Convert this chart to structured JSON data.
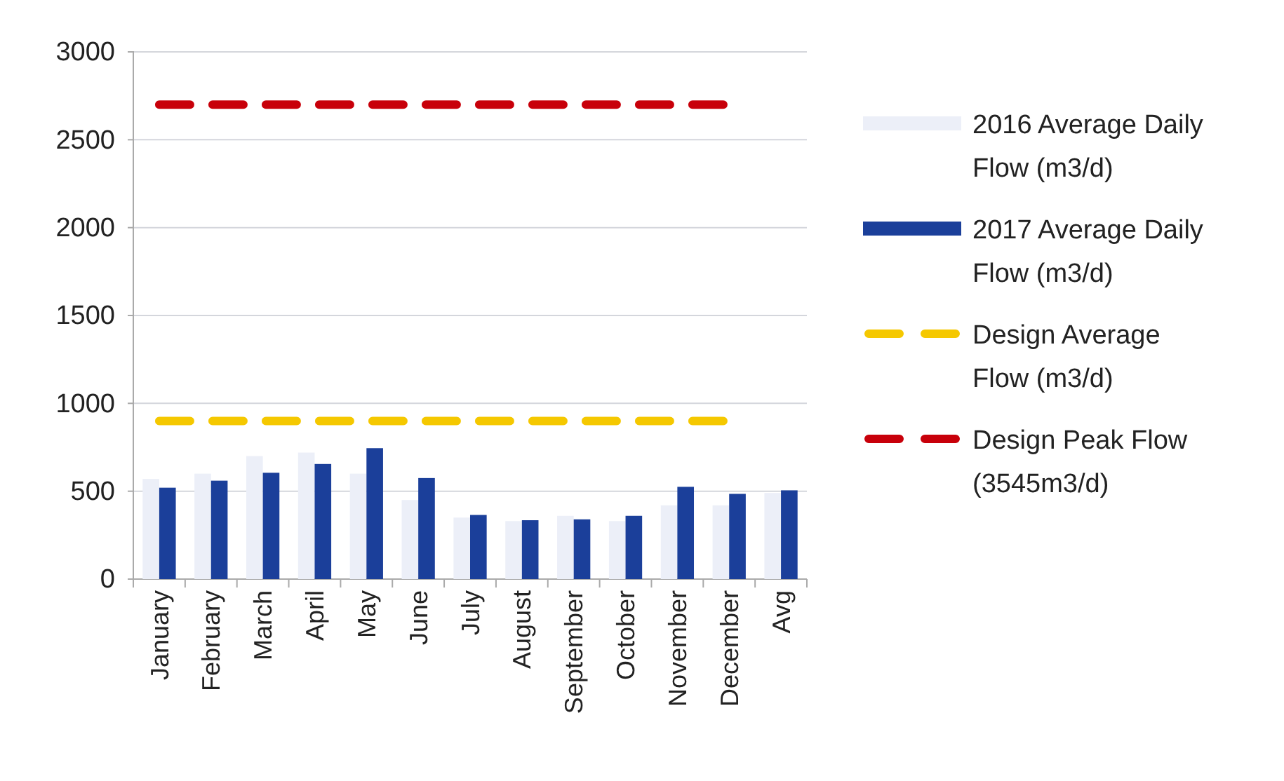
{
  "chart_data": {
    "type": "bar",
    "categories": [
      "January",
      "February",
      "March",
      "April",
      "May",
      "June",
      "July",
      "August",
      "September",
      "October",
      "November",
      "December",
      "Avg"
    ],
    "series": [
      {
        "name": "2016 Average Daily Flow (m3/d)",
        "color": "#eceff8",
        "values": [
          570,
          600,
          700,
          720,
          600,
          450,
          350,
          330,
          360,
          330,
          420,
          420,
          490
        ]
      },
      {
        "name": "2017 Average Daily Flow (m3/d)",
        "color": "#1b3f9a",
        "values": [
          520,
          560,
          605,
          655,
          745,
          575,
          365,
          335,
          340,
          360,
          525,
          485,
          505
        ]
      },
      {
        "name": "Design Average Flow (m3/d)",
        "type": "line",
        "line_style": "dashed",
        "color": "#f5c800",
        "values": [
          900,
          900,
          900,
          900,
          900,
          900,
          900,
          900,
          900,
          900,
          900,
          900,
          null
        ]
      },
      {
        "name": "Design Peak Flow (3545m3/d)",
        "type": "line",
        "line_style": "dashed",
        "color": "#c8000a",
        "values": [
          2700,
          2700,
          2700,
          2700,
          2700,
          2700,
          2700,
          2700,
          2700,
          2700,
          2700,
          2700,
          null
        ]
      }
    ],
    "ylim": [
      0,
      3000
    ],
    "yticks": [
      0,
      500,
      1000,
      1500,
      2000,
      2500,
      3000
    ],
    "grid": "y",
    "legend": "right",
    "marker": "none"
  }
}
